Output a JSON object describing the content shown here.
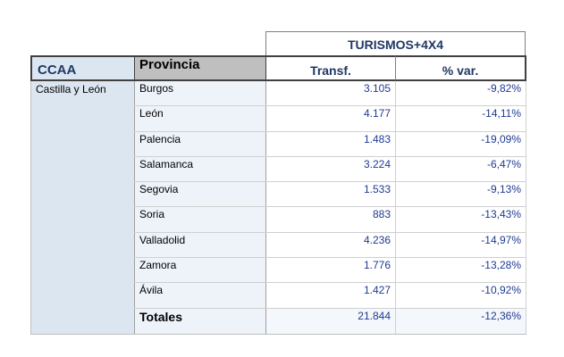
{
  "header": {
    "group": "TURISMOS+4X4",
    "ccaa": "CCAA",
    "provincia": "Provincia",
    "transf": "Transf.",
    "var": "% var."
  },
  "ccaa_value": "Castilla y León",
  "rows": [
    {
      "provincia": "Burgos",
      "transf": "3.105",
      "var": "-9,82%"
    },
    {
      "provincia": "León",
      "transf": "4.177",
      "var": "-14,11%"
    },
    {
      "provincia": "Palencia",
      "transf": "1.483",
      "var": "-19,09%"
    },
    {
      "provincia": "Salamanca",
      "transf": "3.224",
      "var": "-6,47%"
    },
    {
      "provincia": "Segovia",
      "transf": "1.533",
      "var": "-9,13%"
    },
    {
      "provincia": "Soria",
      "transf": "883",
      "var": "-13,43%"
    },
    {
      "provincia": "Valladolid",
      "transf": "4.236",
      "var": "-14,97%"
    },
    {
      "provincia": "Zamora",
      "transf": "1.776",
      "var": "-13,28%"
    },
    {
      "provincia": "Ávila",
      "transf": "1.427",
      "var": "-10,92%"
    }
  ],
  "total": {
    "provincia": "Totales",
    "transf": "21.844",
    "var": "-12,36%"
  }
}
